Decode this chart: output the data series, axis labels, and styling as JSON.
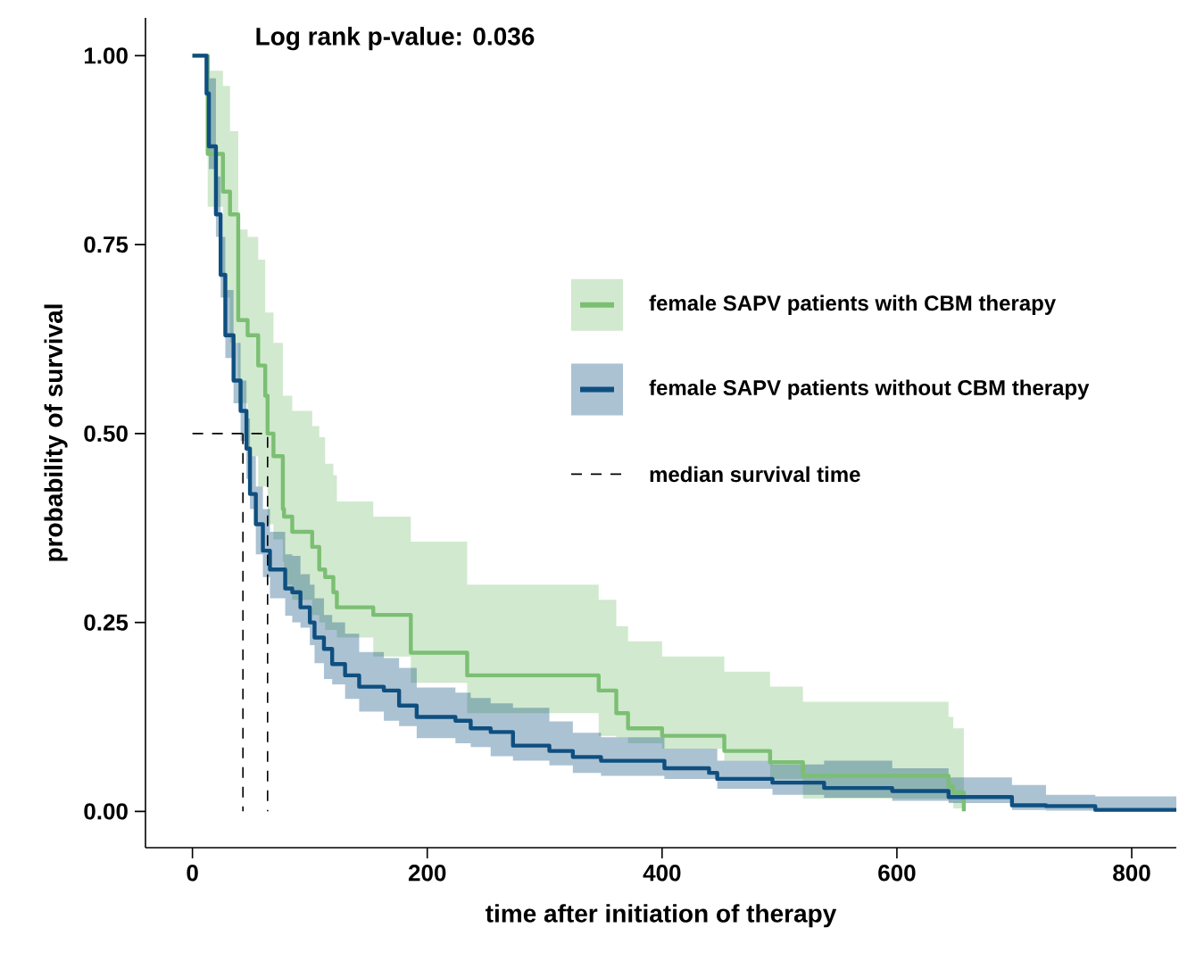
{
  "chart_data": {
    "type": "step",
    "xlabel": "time after initiation of therapy",
    "ylabel": "probability of survival",
    "annotations": [
      "Log rank p-value: 0.036"
    ],
    "xlim": [
      -40,
      838
    ],
    "ylim": [
      -0.048,
      1.05
    ],
    "xticks": [
      0,
      200,
      400,
      600,
      800
    ],
    "yticks": [
      {
        "value": 0,
        "label": "0.00"
      },
      {
        "value": 0.25,
        "label": "0.25"
      },
      {
        "value": 0.5,
        "label": "0.50"
      },
      {
        "value": 0.75,
        "label": "0.75"
      },
      {
        "value": 1,
        "label": "1.00"
      }
    ],
    "grid": false,
    "legend": "right",
    "line_style": "solid",
    "marker": "none",
    "series": [
      {
        "name": "female SAPV patients with CBM therapy",
        "color": "#7bbf73",
        "x": [
          0,
          13,
          26,
          32,
          39,
          47,
          56,
          62,
          64,
          69,
          77,
          78,
          85,
          102,
          108,
          113,
          120,
          123,
          154,
          186,
          234,
          346,
          361,
          371,
          400,
          453,
          492,
          520,
          644,
          648,
          657
        ],
        "values": [
          1.0,
          0.87,
          0.82,
          0.79,
          0.65,
          0.63,
          0.59,
          0.55,
          0.5,
          0.47,
          0.4,
          0.39,
          0.37,
          0.35,
          0.32,
          0.31,
          0.29,
          0.27,
          0.26,
          0.21,
          0.18,
          0.16,
          0.13,
          0.11,
          0.1,
          0.08,
          0.065,
          0.047,
          0.033,
          0.025,
          0.0
        ],
        "upper": [
          1.0,
          0.98,
          0.96,
          0.9,
          0.77,
          0.76,
          0.73,
          0.66,
          0.66,
          0.62,
          0.55,
          0.55,
          0.53,
          0.51,
          0.495,
          0.46,
          0.445,
          0.41,
          0.39,
          0.357,
          0.3,
          0.28,
          0.245,
          0.225,
          0.205,
          0.185,
          0.165,
          0.145,
          0.125,
          0.11,
          0.11
        ],
        "lower": [
          1.0,
          0.8,
          0.68,
          0.62,
          0.54,
          0.47,
          0.43,
          0.43,
          0.38,
          0.36,
          0.33,
          0.3,
          0.28,
          0.26,
          0.25,
          0.24,
          0.24,
          0.23,
          0.205,
          0.17,
          0.13,
          0.1,
          0.098,
          0.09,
          0.083,
          0.067,
          0.043,
          0.017,
          0.012,
          0.004,
          0.0
        ]
      },
      {
        "name": "female SAPV patients without CBM therapy",
        "color": "#0e4f80",
        "x": [
          0,
          12,
          14,
          20,
          24,
          28,
          35,
          41,
          46,
          49,
          54,
          60,
          66,
          79,
          85,
          92,
          100,
          104,
          112,
          119,
          130,
          142,
          163,
          176,
          191,
          224,
          237,
          254,
          273,
          304,
          324,
          348,
          402,
          440,
          447,
          494,
          538,
          596,
          644,
          698,
          727,
          769,
          838
        ],
        "values": [
          1.0,
          0.95,
          0.88,
          0.79,
          0.71,
          0.63,
          0.57,
          0.53,
          0.48,
          0.42,
          0.38,
          0.345,
          0.32,
          0.295,
          0.29,
          0.27,
          0.25,
          0.23,
          0.215,
          0.195,
          0.18,
          0.165,
          0.16,
          0.14,
          0.125,
          0.12,
          0.11,
          0.105,
          0.087,
          0.08,
          0.072,
          0.067,
          0.057,
          0.051,
          0.043,
          0.038,
          0.031,
          0.027,
          0.019,
          0.008,
          0.007,
          0.002,
          0.002
        ],
        "upper": [
          1.0,
          1.0,
          0.97,
          0.84,
          0.76,
          0.69,
          0.62,
          0.57,
          0.52,
          0.47,
          0.43,
          0.4,
          0.37,
          0.34,
          0.338,
          0.314,
          0.3,
          0.282,
          0.26,
          0.25,
          0.235,
          0.211,
          0.203,
          0.19,
          0.164,
          0.157,
          0.15,
          0.143,
          0.137,
          0.119,
          0.104,
          0.098,
          0.083,
          0.083,
          0.067,
          0.062,
          0.067,
          0.057,
          0.045,
          0.035,
          0.022,
          0.02,
          0.02
        ],
        "lower": [
          1.0,
          0.93,
          0.85,
          0.76,
          0.68,
          0.6,
          0.54,
          0.49,
          0.44,
          0.4,
          0.34,
          0.31,
          0.282,
          0.259,
          0.25,
          0.243,
          0.22,
          0.196,
          0.175,
          0.168,
          0.149,
          0.132,
          0.12,
          0.113,
          0.097,
          0.09,
          0.085,
          0.073,
          0.067,
          0.061,
          0.051,
          0.047,
          0.043,
          0.043,
          0.03,
          0.022,
          0.018,
          0.014,
          0.011,
          0.002,
          0.001,
          0.0,
          0.0
        ]
      },
      {
        "name": "median survival time",
        "type": "line",
        "color": "#000000",
        "line_style": "dashed",
        "x": [
          0,
          64,
          64
        ],
        "values": [
          0.5,
          0.5,
          0
        ]
      },
      {
        "type": "line",
        "color": "#000000",
        "line_style": "dashed",
        "x": [
          43,
          43
        ],
        "values": [
          0.5,
          0
        ]
      }
    ]
  }
}
